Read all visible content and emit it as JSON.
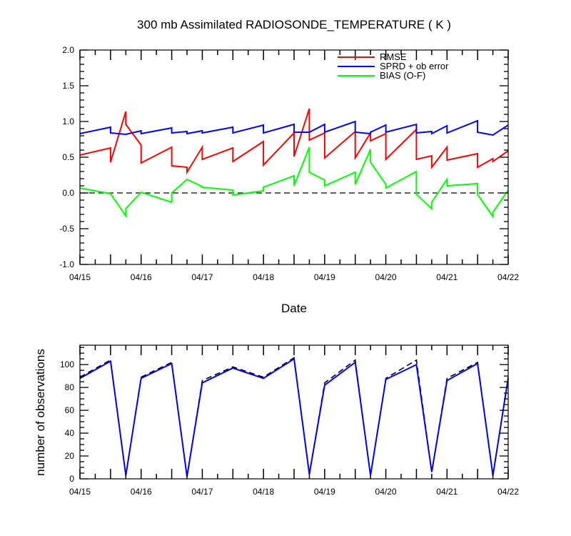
{
  "chart_data": [
    {
      "type": "line",
      "title": "300 mb Assimilated RADIOSONDE_TEMPERATURE ( K )",
      "xlabel": "Date",
      "ylabel": "",
      "ylim": [
        -1.0,
        2.0
      ],
      "yticks": [
        "-1.0",
        "-0.5",
        "0.0",
        "0.5",
        "1.0",
        "1.5",
        "2.0"
      ],
      "xlim": [
        0,
        7
      ],
      "xtick_labels": [
        "04/15",
        "04/16",
        "04/17",
        "04/18",
        "04/19",
        "04/20",
        "04/21",
        "04/22"
      ],
      "zero_line": "dashed",
      "legend_position": "top-right",
      "series": [
        {
          "name": "RMSE",
          "color": "#ff0000",
          "points": [
            [
              0.0,
              0.53
            ],
            [
              0.5,
              0.63
            ],
            [
              0.5,
              0.43
            ],
            [
              0.75,
              1.14
            ],
            [
              0.75,
              0.96
            ],
            [
              1.0,
              0.67
            ],
            [
              1.0,
              0.42
            ],
            [
              1.5,
              0.64
            ],
            [
              1.5,
              0.38
            ],
            [
              1.75,
              0.36
            ],
            [
              1.75,
              0.29
            ],
            [
              2.0,
              0.64
            ],
            [
              2.0,
              0.47
            ],
            [
              2.5,
              0.63
            ],
            [
              2.5,
              0.44
            ],
            [
              3.0,
              0.72
            ],
            [
              3.0,
              0.39
            ],
            [
              3.5,
              0.84
            ],
            [
              3.5,
              0.51
            ],
            [
              3.75,
              1.18
            ],
            [
              3.75,
              0.74
            ],
            [
              4.0,
              0.84
            ],
            [
              4.0,
              0.49
            ],
            [
              4.5,
              0.86
            ],
            [
              4.5,
              0.49
            ],
            [
              4.75,
              0.84
            ],
            [
              4.75,
              0.73
            ],
            [
              5.0,
              0.83
            ],
            [
              5.0,
              0.47
            ],
            [
              5.5,
              0.89
            ],
            [
              5.5,
              0.47
            ],
            [
              5.75,
              0.52
            ],
            [
              5.75,
              0.36
            ],
            [
              6.0,
              0.64
            ],
            [
              6.0,
              0.46
            ],
            [
              6.5,
              0.55
            ],
            [
              6.5,
              0.36
            ],
            [
              6.75,
              0.48
            ],
            [
              6.75,
              0.44
            ],
            [
              7.0,
              0.59
            ]
          ]
        },
        {
          "name": "SPRD + ob error",
          "color": "#0000ff",
          "points": [
            [
              0.0,
              0.83
            ],
            [
              0.5,
              0.92
            ],
            [
              0.5,
              0.84
            ],
            [
              0.75,
              0.82
            ],
            [
              0.75,
              0.82
            ],
            [
              1.0,
              0.87
            ],
            [
              1.0,
              0.83
            ],
            [
              1.5,
              0.91
            ],
            [
              1.5,
              0.84
            ],
            [
              1.75,
              0.86
            ],
            [
              1.75,
              0.83
            ],
            [
              2.0,
              0.87
            ],
            [
              2.0,
              0.84
            ],
            [
              2.5,
              0.92
            ],
            [
              2.5,
              0.84
            ],
            [
              3.0,
              0.95
            ],
            [
              3.0,
              0.84
            ],
            [
              3.5,
              0.96
            ],
            [
              3.5,
              0.85
            ],
            [
              3.75,
              0.85
            ],
            [
              3.75,
              0.85
            ],
            [
              4.0,
              0.96
            ],
            [
              4.0,
              0.85
            ],
            [
              4.5,
              1.0
            ],
            [
              4.5,
              0.85
            ],
            [
              4.75,
              0.83
            ],
            [
              4.75,
              0.85
            ],
            [
              5.0,
              0.95
            ],
            [
              5.0,
              0.85
            ],
            [
              5.5,
              0.96
            ],
            [
              5.5,
              0.84
            ],
            [
              5.75,
              0.86
            ],
            [
              5.75,
              0.83
            ],
            [
              6.0,
              0.94
            ],
            [
              6.0,
              0.84
            ],
            [
              6.5,
              1.01
            ],
            [
              6.5,
              0.85
            ],
            [
              6.75,
              0.81
            ],
            [
              7.0,
              0.95
            ]
          ]
        },
        {
          "name": "BIAS (O-F)",
          "color": "#00ff00",
          "points": [
            [
              0.0,
              0.07
            ],
            [
              0.5,
              -0.01
            ],
            [
              0.75,
              -0.32
            ],
            [
              0.75,
              -0.22
            ],
            [
              1.0,
              0.01
            ],
            [
              1.5,
              -0.13
            ],
            [
              1.5,
              0.0
            ],
            [
              1.75,
              0.19
            ],
            [
              2.0,
              0.09
            ],
            [
              2.0,
              0.08
            ],
            [
              2.5,
              0.04
            ],
            [
              2.5,
              -0.03
            ],
            [
              3.0,
              0.03
            ],
            [
              3.0,
              0.08
            ],
            [
              3.5,
              0.24
            ],
            [
              3.5,
              0.1
            ],
            [
              3.75,
              0.64
            ],
            [
              3.75,
              0.29
            ],
            [
              4.0,
              0.18
            ],
            [
              4.0,
              0.1
            ],
            [
              4.5,
              0.29
            ],
            [
              4.5,
              0.12
            ],
            [
              4.75,
              0.61
            ],
            [
              4.75,
              0.43
            ],
            [
              5.0,
              0.12
            ],
            [
              5.0,
              0.07
            ],
            [
              5.5,
              0.3
            ],
            [
              5.5,
              -0.02
            ],
            [
              5.75,
              -0.22
            ],
            [
              5.75,
              -0.13
            ],
            [
              6.0,
              0.19
            ],
            [
              6.0,
              0.1
            ],
            [
              6.5,
              0.13
            ],
            [
              6.5,
              -0.02
            ],
            [
              6.75,
              -0.33
            ],
            [
              6.75,
              -0.27
            ],
            [
              7.0,
              0.04
            ]
          ]
        }
      ]
    },
    {
      "type": "line",
      "title": "",
      "xlabel": "",
      "ylabel": "number of observations",
      "ylim": [
        0,
        117
      ],
      "yticks": [
        "0",
        "20",
        "40",
        "60",
        "80",
        "100"
      ],
      "xlim": [
        0,
        7
      ],
      "xtick_labels": [
        "04/15",
        "04/16",
        "04/17",
        "04/18",
        "04/19",
        "04/20",
        "04/21",
        "04/22"
      ],
      "series": [
        {
          "name": "",
          "style": "dashed",
          "color": "#000000",
          "points": [
            [
              0.0,
              89
            ],
            [
              0.5,
              104
            ],
            [
              0.75,
              3
            ],
            [
              1.0,
              89
            ],
            [
              1.5,
              102
            ],
            [
              1.75,
              2
            ],
            [
              2.0,
              86
            ],
            [
              2.5,
              98
            ],
            [
              3.0,
              89
            ],
            [
              3.5,
              106
            ],
            [
              3.75,
              4
            ],
            [
              4.0,
              84
            ],
            [
              4.5,
              104
            ],
            [
              4.75,
              3
            ],
            [
              5.0,
              88
            ],
            [
              5.5,
              104
            ],
            [
              5.75,
              6
            ],
            [
              6.0,
              88
            ],
            [
              6.5,
              102
            ],
            [
              6.75,
              3
            ],
            [
              7.0,
              89
            ]
          ]
        },
        {
          "name": "",
          "style": "solid",
          "color": "#0000ff",
          "points": [
            [
              0.0,
              88
            ],
            [
              0.5,
              103
            ],
            [
              0.75,
              3
            ],
            [
              1.0,
              88
            ],
            [
              1.5,
              101
            ],
            [
              1.75,
              2
            ],
            [
              2.0,
              84
            ],
            [
              2.5,
              97
            ],
            [
              3.0,
              88
            ],
            [
              3.5,
              105
            ],
            [
              3.75,
              4
            ],
            [
              4.0,
              82
            ],
            [
              4.5,
              102
            ],
            [
              4.75,
              3
            ],
            [
              5.0,
              87
            ],
            [
              5.5,
              100
            ],
            [
              5.75,
              6
            ],
            [
              6.0,
              86
            ],
            [
              6.5,
              101
            ],
            [
              6.75,
              3
            ],
            [
              7.0,
              88
            ]
          ]
        }
      ]
    }
  ]
}
